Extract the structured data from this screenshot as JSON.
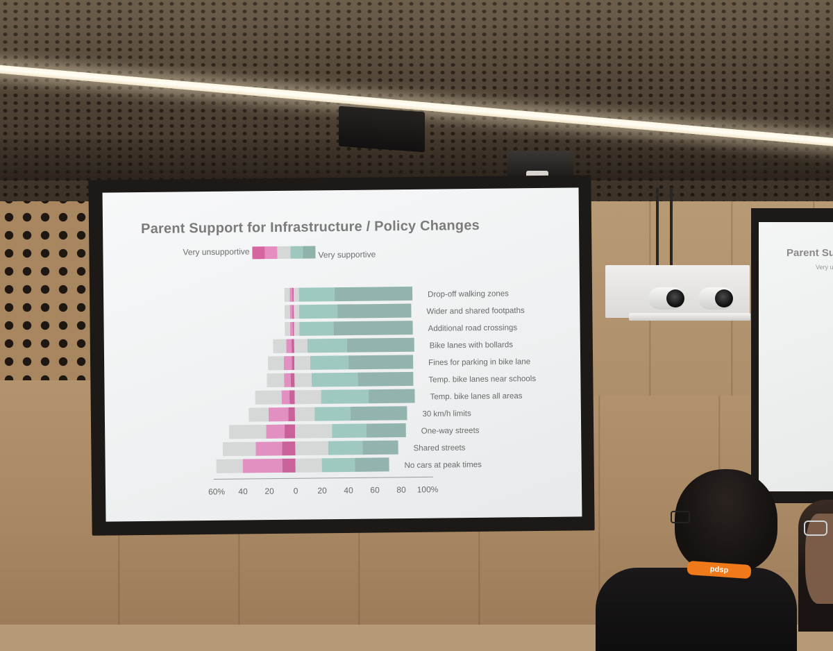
{
  "slide": {
    "title": "Parent Support for Infrastructure / Policy Changes",
    "legend_left": "Very unsupportive",
    "legend_right": "Very supportive",
    "legend_colors": [
      "#d6669f",
      "#e58cc0",
      "#d6d8d7",
      "#9ec7c0",
      "#8fb2ab"
    ]
  },
  "chart_data": {
    "type": "bar",
    "stacked": true,
    "orientation": "horizontal",
    "categories": [
      "Drop-off walking zones",
      "Wider and shared footpaths",
      "Additional road crossings",
      "Bike lanes with bollards",
      "Fines for parking in bike lane",
      "Temp. bike lanes near schools",
      "Temp. bike lanes all areas",
      "30 km/h limits",
      "One-way streets",
      "Shared streets",
      "No cars at peak times"
    ],
    "series": [
      {
        "color": "#c9619b",
        "values": [
          -1,
          -1,
          -1,
          -2,
          -2,
          -3,
          -4,
          -5,
          -8,
          -10,
          -10
        ]
      },
      {
        "color": "#e290c2",
        "values": [
          -2,
          -2,
          -2,
          -4,
          -6,
          -5,
          -6,
          -15,
          -14,
          -20,
          -30
        ]
      },
      {
        "color": "#d6d8d7",
        "values": [
          -4,
          -4,
          -4,
          -10,
          -12,
          -13,
          -20,
          -15,
          -28,
          -25,
          -20
        ]
      },
      {
        "color": "#d6d8d7",
        "values": [
          4,
          4,
          4,
          10,
          12,
          13,
          20,
          15,
          28,
          25,
          20
        ]
      },
      {
        "color": "#9fc8c1",
        "values": [
          27,
          29,
          26,
          30,
          29,
          35,
          36,
          27,
          26,
          26,
          25
        ]
      },
      {
        "color": "#93b4ae",
        "values": [
          59,
          56,
          60,
          51,
          49,
          42,
          35,
          43,
          30,
          27,
          26
        ]
      }
    ],
    "x_ticks": [
      "60%",
      "40",
      "20",
      "0",
      "20",
      "40",
      "60",
      "80",
      "100%"
    ],
    "xlim": [
      -60,
      100
    ]
  },
  "second_screen": {
    "title": "Parent Sup",
    "subtitle": "Very u"
  },
  "badge": {
    "text": "pdsp"
  }
}
